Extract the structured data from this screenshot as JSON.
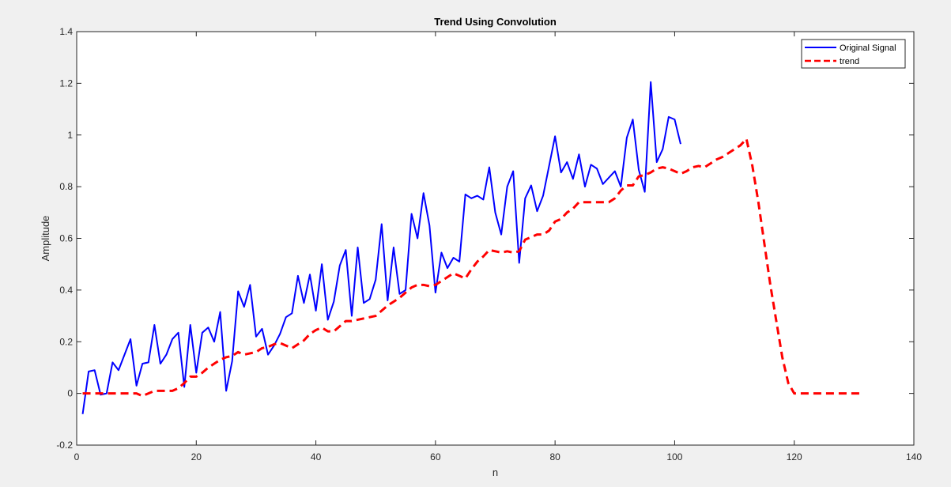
{
  "chart_data": {
    "type": "line",
    "title": "Trend Using Convolution",
    "xlabel": "n",
    "ylabel": "Amplitude",
    "xlim": [
      0,
      140
    ],
    "ylim": [
      -0.2,
      1.4
    ],
    "xticks": [
      0,
      20,
      40,
      60,
      80,
      100,
      120,
      140
    ],
    "yticks": [
      -0.2,
      0,
      0.2,
      0.4,
      0.6,
      0.8,
      1,
      1.2,
      1.4
    ],
    "xtick_labels": [
      "0",
      "20",
      "40",
      "60",
      "80",
      "100",
      "120",
      "140"
    ],
    "ytick_labels": [
      "-0.2",
      "0",
      "0.2",
      "0.4",
      "0.6",
      "0.8",
      "1",
      "1.2",
      "1.4"
    ],
    "grid": false,
    "legend_position": "top-right",
    "series": [
      {
        "name": "Original Signal",
        "color": "#0000ff",
        "style": "solid",
        "x": [
          1,
          2,
          3,
          4,
          5,
          6,
          7,
          8,
          9,
          10,
          11,
          12,
          13,
          14,
          15,
          16,
          17,
          18,
          19,
          20,
          21,
          22,
          23,
          24,
          25,
          26,
          27,
          28,
          29,
          30,
          31,
          32,
          33,
          34,
          35,
          36,
          37,
          38,
          39,
          40,
          41,
          42,
          43,
          44,
          45,
          46,
          47,
          48,
          49,
          50,
          51,
          52,
          53,
          54,
          55,
          56,
          57,
          58,
          59,
          60,
          61,
          62,
          63,
          64,
          65,
          66,
          67,
          68,
          69,
          70,
          71,
          72,
          73,
          74,
          75,
          76,
          77,
          78,
          79,
          80,
          81,
          82,
          83,
          84,
          85,
          86,
          87,
          88,
          89,
          90,
          91,
          92,
          93,
          94,
          95,
          96,
          97,
          98,
          99,
          100,
          101
        ],
        "values": [
          -0.08,
          0.085,
          0.09,
          -0.005,
          0.0,
          0.12,
          0.09,
          0.15,
          0.21,
          0.03,
          0.115,
          0.12,
          0.265,
          0.115,
          0.15,
          0.21,
          0.235,
          0.025,
          0.265,
          0.08,
          0.235,
          0.255,
          0.2,
          0.315,
          0.01,
          0.125,
          0.395,
          0.335,
          0.42,
          0.22,
          0.25,
          0.15,
          0.185,
          0.23,
          0.295,
          0.31,
          0.455,
          0.35,
          0.46,
          0.32,
          0.5,
          0.285,
          0.355,
          0.495,
          0.555,
          0.3,
          0.565,
          0.35,
          0.365,
          0.44,
          0.655,
          0.36,
          0.565,
          0.385,
          0.4,
          0.695,
          0.6,
          0.775,
          0.65,
          0.39,
          0.545,
          0.485,
          0.525,
          0.51,
          0.77,
          0.755,
          0.765,
          0.75,
          0.875,
          0.7,
          0.615,
          0.8,
          0.86,
          0.505,
          0.755,
          0.805,
          0.705,
          0.765,
          0.88,
          0.995,
          0.855,
          0.895,
          0.83,
          0.925,
          0.8,
          0.885,
          0.87,
          0.81,
          0.835,
          0.86,
          0.8,
          0.99,
          1.06,
          0.865,
          0.78,
          1.205,
          0.895,
          0.945,
          1.07,
          1.06,
          0.965
        ]
      },
      {
        "name": "trend",
        "color": "#ff0000",
        "style": "dashed",
        "x": [
          1,
          3,
          5,
          7,
          9,
          10,
          11,
          12,
          13,
          14,
          15,
          16,
          17,
          18,
          19,
          20,
          21,
          22,
          23,
          24,
          25,
          26,
          27,
          28,
          29,
          30,
          31,
          32,
          33,
          34,
          35,
          36,
          37,
          38,
          39,
          40,
          41,
          42,
          43,
          44,
          45,
          46,
          47,
          48,
          49,
          50,
          51,
          52,
          53,
          54,
          55,
          56,
          57,
          58,
          59,
          60,
          61,
          62,
          63,
          64,
          65,
          66,
          67,
          68,
          69,
          70,
          71,
          72,
          73,
          74,
          75,
          76,
          77,
          78,
          79,
          80,
          81,
          82,
          83,
          84,
          85,
          86,
          87,
          88,
          89,
          90,
          91,
          92,
          93,
          94,
          95,
          96,
          97,
          98,
          99,
          100,
          101,
          102,
          103,
          104,
          105,
          106,
          107,
          108,
          109,
          110,
          111,
          112,
          113,
          114,
          115,
          116,
          117,
          118,
          119,
          120,
          121,
          122,
          124,
          126,
          128,
          130,
          131
        ],
        "values": [
          0,
          0,
          0,
          0,
          0,
          0,
          -0.01,
          0,
          0.01,
          0.01,
          0.01,
          0.01,
          0.02,
          0.04,
          0.065,
          0.065,
          0.08,
          0.1,
          0.115,
          0.13,
          0.14,
          0.145,
          0.16,
          0.15,
          0.155,
          0.16,
          0.175,
          0.18,
          0.19,
          0.195,
          0.185,
          0.175,
          0.19,
          0.205,
          0.23,
          0.245,
          0.255,
          0.24,
          0.24,
          0.26,
          0.28,
          0.28,
          0.285,
          0.29,
          0.295,
          0.3,
          0.32,
          0.34,
          0.355,
          0.37,
          0.39,
          0.41,
          0.42,
          0.42,
          0.415,
          0.42,
          0.435,
          0.45,
          0.465,
          0.455,
          0.445,
          0.48,
          0.51,
          0.53,
          0.555,
          0.55,
          0.545,
          0.55,
          0.545,
          0.55,
          0.595,
          0.605,
          0.615,
          0.615,
          0.63,
          0.665,
          0.675,
          0.7,
          0.715,
          0.74,
          0.74,
          0.74,
          0.74,
          0.74,
          0.74,
          0.755,
          0.785,
          0.805,
          0.805,
          0.84,
          0.845,
          0.855,
          0.87,
          0.875,
          0.87,
          0.86,
          0.85,
          0.86,
          0.875,
          0.88,
          0.875,
          0.89,
          0.905,
          0.915,
          0.93,
          0.945,
          0.96,
          0.985,
          0.88,
          0.74,
          0.58,
          0.42,
          0.28,
          0.14,
          0.04,
          0.0,
          0,
          0,
          0,
          0,
          0,
          0,
          0
        ]
      }
    ]
  }
}
